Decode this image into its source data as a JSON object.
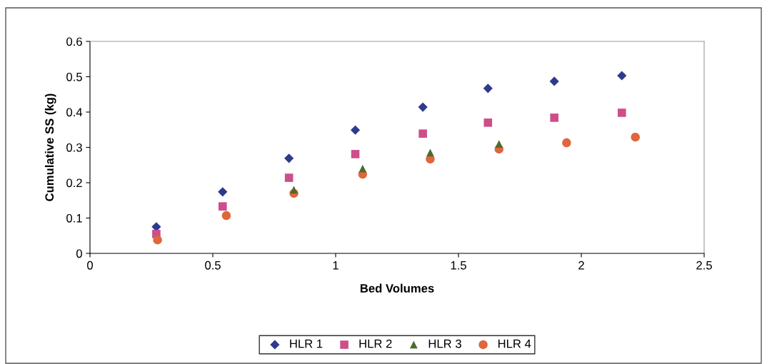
{
  "chart_data": {
    "type": "scatter",
    "xlabel": "Bed Volumes",
    "ylabel": "Cumulative SS (kg)",
    "xlim": [
      0,
      2.5
    ],
    "xticks": [
      0,
      0.5,
      1,
      1.5,
      2,
      2.5
    ],
    "ylim": [
      0,
      0.6
    ],
    "yticks": [
      0,
      0.1,
      0.2,
      0.3,
      0.4,
      0.5,
      0.6
    ],
    "grid": false,
    "legend": "bottom",
    "series": [
      {
        "name": "HLR 1",
        "color": "#2e3a8c",
        "marker": "diamond",
        "x": [
          0.27,
          0.54,
          0.81,
          1.08,
          1.355,
          1.62,
          1.89,
          2.165
        ],
        "values": [
          0.075,
          0.174,
          0.269,
          0.349,
          0.414,
          0.467,
          0.487,
          0.503
        ]
      },
      {
        "name": "HLR 2",
        "color": "#cc4f8a",
        "marker": "square",
        "x": [
          0.27,
          0.54,
          0.81,
          1.08,
          1.355,
          1.62,
          1.89,
          2.165
        ],
        "values": [
          0.055,
          0.133,
          0.214,
          0.281,
          0.339,
          0.37,
          0.384,
          0.398
        ]
      },
      {
        "name": "HLR 3",
        "color": "#4e6b2e",
        "marker": "triangle",
        "x": [
          0.83,
          1.11,
          1.385,
          1.665
        ],
        "values": [
          0.18,
          0.24,
          0.285,
          0.31
        ]
      },
      {
        "name": "HLR 4",
        "color": "#e0663c",
        "marker": "circle",
        "x": [
          0.275,
          0.555,
          0.83,
          1.11,
          1.385,
          1.665,
          1.94,
          2.22
        ],
        "values": [
          0.038,
          0.107,
          0.17,
          0.224,
          0.267,
          0.295,
          0.313,
          0.329
        ]
      }
    ]
  }
}
